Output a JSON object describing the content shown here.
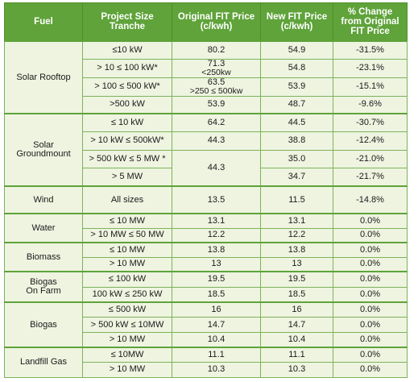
{
  "header": [
    "Fuel",
    "Project Size\nTranche",
    "Original FIT Price\n(c/kwh)",
    "New FIT Price\n(c/kwh)",
    "% Change\nfrom Original\nFIT Price"
  ],
  "groups": [
    {
      "fuel": "Solar Rooftop",
      "rows": [
        {
          "tranche": "≤10 kW",
          "original": "80.2",
          "new": "54.9",
          "change": "-31.5%"
        },
        {
          "tranche": "> 10 ≤ 100 kW*",
          "original": "71.3",
          "original_note": "<250kw",
          "new": "54.8",
          "change": "-23.1%"
        },
        {
          "tranche": "> 100 ≤ 500 kW*",
          "original": "63.5",
          "original_note": ">250 ≤ 500kw",
          "new": "53.9",
          "change": "-15.1%"
        },
        {
          "tranche": ">500 kW",
          "original": "53.9",
          "new": "48.7",
          "change": "-9.6%"
        }
      ]
    },
    {
      "fuel": "Solar\nGroundmount",
      "rows": [
        {
          "tranche": "≤ 10 kW",
          "original": "64.2",
          "new": "44.5",
          "change": "-30.7%"
        },
        {
          "tranche": "> 10 kW ≤ 500kW*",
          "original": "44.3",
          "new": "38.8",
          "change": "-12.4%"
        },
        {
          "tranche": "> 500 kW ≤ 5 MW *",
          "original": "44.3",
          "new": "35.0",
          "change": "-21.0%"
        },
        {
          "tranche": "> 5 MW",
          "new": "34.7",
          "change": "-21.7%"
        }
      ]
    },
    {
      "fuel": "Wind",
      "rows": [
        {
          "tranche": "All sizes",
          "original": "13.5",
          "new": "11.5",
          "change": "-14.8%"
        }
      ]
    },
    {
      "fuel": "Water",
      "rows": [
        {
          "tranche": "≤ 10 MW",
          "original": "13.1",
          "new": "13.1",
          "change": "0.0%"
        },
        {
          "tranche": "> 10 MW ≤ 50 MW",
          "original": "12.2",
          "new": "12.2",
          "change": "0.0%"
        }
      ]
    },
    {
      "fuel": "Biomass",
      "rows": [
        {
          "tranche": "≤ 10 MW",
          "original": "13.8",
          "new": "13.8",
          "change": "0.0%"
        },
        {
          "tranche": "> 10 MW",
          "original": "13",
          "new": "13",
          "change": "0.0%"
        }
      ]
    },
    {
      "fuel": "Biogas\nOn Farm",
      "rows": [
        {
          "tranche": "≤ 100 kW",
          "original": "19.5",
          "new": "19.5",
          "change": "0.0%"
        },
        {
          "tranche": "100 kW ≤ 250 kW",
          "original": "18.5",
          "new": "18.5",
          "change": "0.0%"
        }
      ]
    },
    {
      "fuel": "Biogas",
      "rows": [
        {
          "tranche": "≤ 500 kW",
          "original": "16",
          "new": "16",
          "change": "0.0%"
        },
        {
          "tranche": "> 500 kW ≤ 10MW",
          "original": "14.7",
          "new": "14.7",
          "change": "0.0%"
        },
        {
          "tranche": "> 10 MW",
          "original": "10.4",
          "new": "10.4",
          "change": "0.0%"
        }
      ]
    },
    {
      "fuel": "Landfill Gas",
      "rows": [
        {
          "tranche": "≤ 10MW",
          "original": "11.1",
          "new": "11.1",
          "change": "0.0%"
        },
        {
          "tranche": "> 10 MW",
          "original": "10.3",
          "new": "10.3",
          "change": "0.0%"
        }
      ]
    }
  ]
}
